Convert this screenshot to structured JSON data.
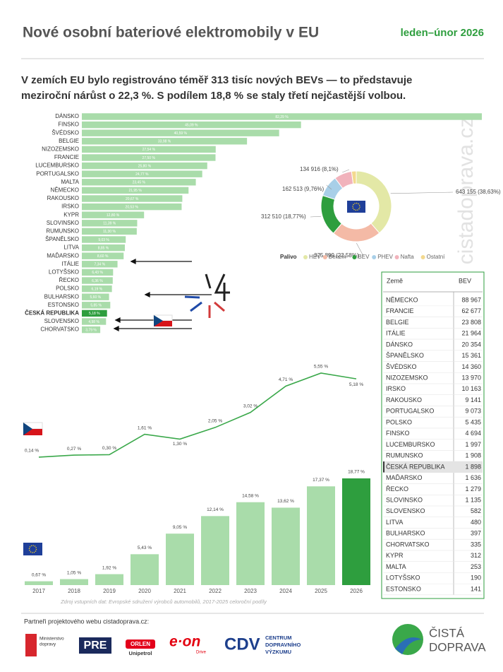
{
  "header": {
    "title": "Nové osobní bateriové elektromobily v EU",
    "period": "leden–únor 2026",
    "subtitle_lines": [
      "V zemích EU bylo registrováno téměř 313 tisíc nových BEVs — to představuje",
      "meziroční nárůst o 22,3 %. S podílem 18,8 % se staly třetí nejčastější volbou."
    ],
    "watermark": "cistadoprava.cz"
  },
  "chart_data": [
    {
      "type": "hbar",
      "categories": [
        "DÁNSKO",
        "FINSKO",
        "ŠVÉDSKO",
        "BELGIE",
        "NIZOZEMSKO",
        "FRANCIE",
        "LUCEMBURSKO",
        "PORTUGALSKO",
        "MALTA",
        "NĚMECKO",
        "RAKOUSKO",
        "IRSKO",
        "KYPR",
        "SLOVINSKO",
        "RUMUNSKO",
        "ŠPANĚLSKO",
        "LITVA",
        "MAĎARSKO",
        "ITÁLIE",
        "LOTYŠSKO",
        "ŘECKO",
        "POLSKO",
        "BULHARSKO",
        "ESTONSKO",
        "ČESKÁ REPUBLIKA",
        "SLOVENSKO",
        "CHORVATSKO"
      ],
      "values": [
        82.29,
        45.09,
        40.59,
        33.98,
        27.54,
        27.5,
        25.8,
        24.77,
        23.45,
        21.95,
        20.67,
        20.53,
        12.8,
        11.39,
        11.3,
        9.03,
        8.85,
        8.6,
        7.34,
        6.43,
        6.36,
        6.19,
        5.6,
        5.85,
        5.18,
        4.98,
        3.79
      ],
      "value_labels": [
        "82,29 %",
        "45,09 %",
        "40,59 %",
        "33,98 %",
        "27,54 %",
        "27,50 %",
        "25,80 %",
        "24,77 %",
        "23,45 %",
        "21,95 %",
        "20,67 %",
        "20,53 %",
        "12,80 %",
        "11,39 %",
        "11,30 %",
        "9,03 %",
        "8,85 %",
        "8,60 %",
        "7,34 %",
        "6,43 %",
        "6,36 %",
        "6,19 %",
        "5,60 %",
        "5,85 %",
        "5,18 %",
        "4,98 %",
        "3,79 %"
      ],
      "color": "#a9dcaa",
      "highlight_color": "#2e9e3e",
      "highlight_index": 24
    },
    {
      "type": "donut",
      "legend_title": "Palivo",
      "categories": [
        "HEV",
        "Benzín",
        "BEV",
        "PHEV",
        "Nafta",
        "Ostatní"
      ],
      "values": [
        643155,
        375899,
        312510,
        162513,
        134916,
        35800
      ],
      "value_labels": [
        "643 155 (38,63%)",
        "375 899 (22,58%)",
        "312 510 (18,77%)",
        "162 513 (9,76%)",
        "134 916 (8,1%)",
        null
      ],
      "colors": [
        "#e3e8a6",
        "#f4baa6",
        "#2e9e3e",
        "#a8cfe8",
        "#f1b3bc",
        "#f3d98f"
      ],
      "legend": "bottom"
    },
    {
      "type": "line",
      "values": [
        0.14,
        0.27,
        0.3,
        1.61,
        1.3,
        2.05,
        3.02,
        4.71,
        5.55,
        5.18
      ],
      "value_labels": [
        "0,14 %",
        "0,27 %",
        "0,30 %",
        "1,61 %",
        "1,30 %",
        "2,05 %",
        "3,02 %",
        "4,71 %",
        "5,55 %",
        "5,18 %"
      ],
      "color": "#3aa84a"
    },
    {
      "type": "bar",
      "categories": [
        "2017",
        "2018",
        "2019",
        "2020",
        "2021",
        "2022",
        "2023",
        "2024",
        "2025",
        "2026"
      ],
      "values": [
        0.67,
        1.05,
        1.92,
        5.43,
        9.05,
        12.14,
        14.58,
        13.62,
        17.37,
        18.77
      ],
      "value_labels": [
        "0,67 %",
        "1,05 %",
        "1,92 %",
        "5,43 %",
        "9,05 %",
        "12,14 %",
        "14,58 %",
        "13,62 %",
        "17,37 %",
        "18,77 %"
      ],
      "color": "#a9dcaa",
      "highlight_color": "#2e9e3e",
      "highlight_index": 9,
      "source": "Zdroj vstupních dat: Evropské sdružení výrobců automobilů, 2017-2025 celoroční podíly"
    }
  ],
  "table": {
    "headers": [
      "Země",
      "BEV"
    ],
    "highlight_row": 15,
    "rows": [
      [
        "NĚMECKO",
        "88 967"
      ],
      [
        "FRANCIE",
        "62 677"
      ],
      [
        "BELGIE",
        "23 808"
      ],
      [
        "ITÁLIE",
        "21 964"
      ],
      [
        "DÁNSKO",
        "20 354"
      ],
      [
        "ŠPANĚLSKO",
        "15 361"
      ],
      [
        "ŠVÉDSKO",
        "14 360"
      ],
      [
        "NIZOZEMSKO",
        "13 970"
      ],
      [
        "IRSKO",
        "10 163"
      ],
      [
        "RAKOUSKO",
        "9 141"
      ],
      [
        "PORTUGALSKO",
        "9 073"
      ],
      [
        "POLSKO",
        "5 435"
      ],
      [
        "FINSKO",
        "4 694"
      ],
      [
        "LUCEMBURSKO",
        "1 997"
      ],
      [
        "RUMUNSKO",
        "1 908"
      ],
      [
        "ČESKÁ REPUBLIKA",
        "1 898"
      ],
      [
        "MAĎARSKO",
        "1 636"
      ],
      [
        "ŘECKO",
        "1 279"
      ],
      [
        "SLOVINSKO",
        "1 135"
      ],
      [
        "SLOVENSKO",
        "582"
      ],
      [
        "LITVA",
        "480"
      ],
      [
        "BULHARSKO",
        "397"
      ],
      [
        "CHORVATSKO",
        "335"
      ],
      [
        "KYPR",
        "312"
      ],
      [
        "MALTA",
        "253"
      ],
      [
        "LOTYŠSKO",
        "190"
      ],
      [
        "ESTONSKO",
        "141"
      ]
    ]
  },
  "footer": {
    "partners_label": "Partneři projektového webu cistadoprava.cz:",
    "logos": {
      "ministry": [
        "Ministerstvo",
        "dopravy"
      ],
      "pre": "PRE",
      "orlen": [
        "ORLEN",
        "Unipetrol"
      ],
      "eon": [
        "e·on",
        "Drive"
      ],
      "cdv": [
        "CDV",
        "CENTRUM",
        "DOPRAVNÍHO",
        "VÝZKUMU"
      ],
      "cista": [
        "ČISTÁ",
        "DOPRAVA"
      ]
    }
  }
}
